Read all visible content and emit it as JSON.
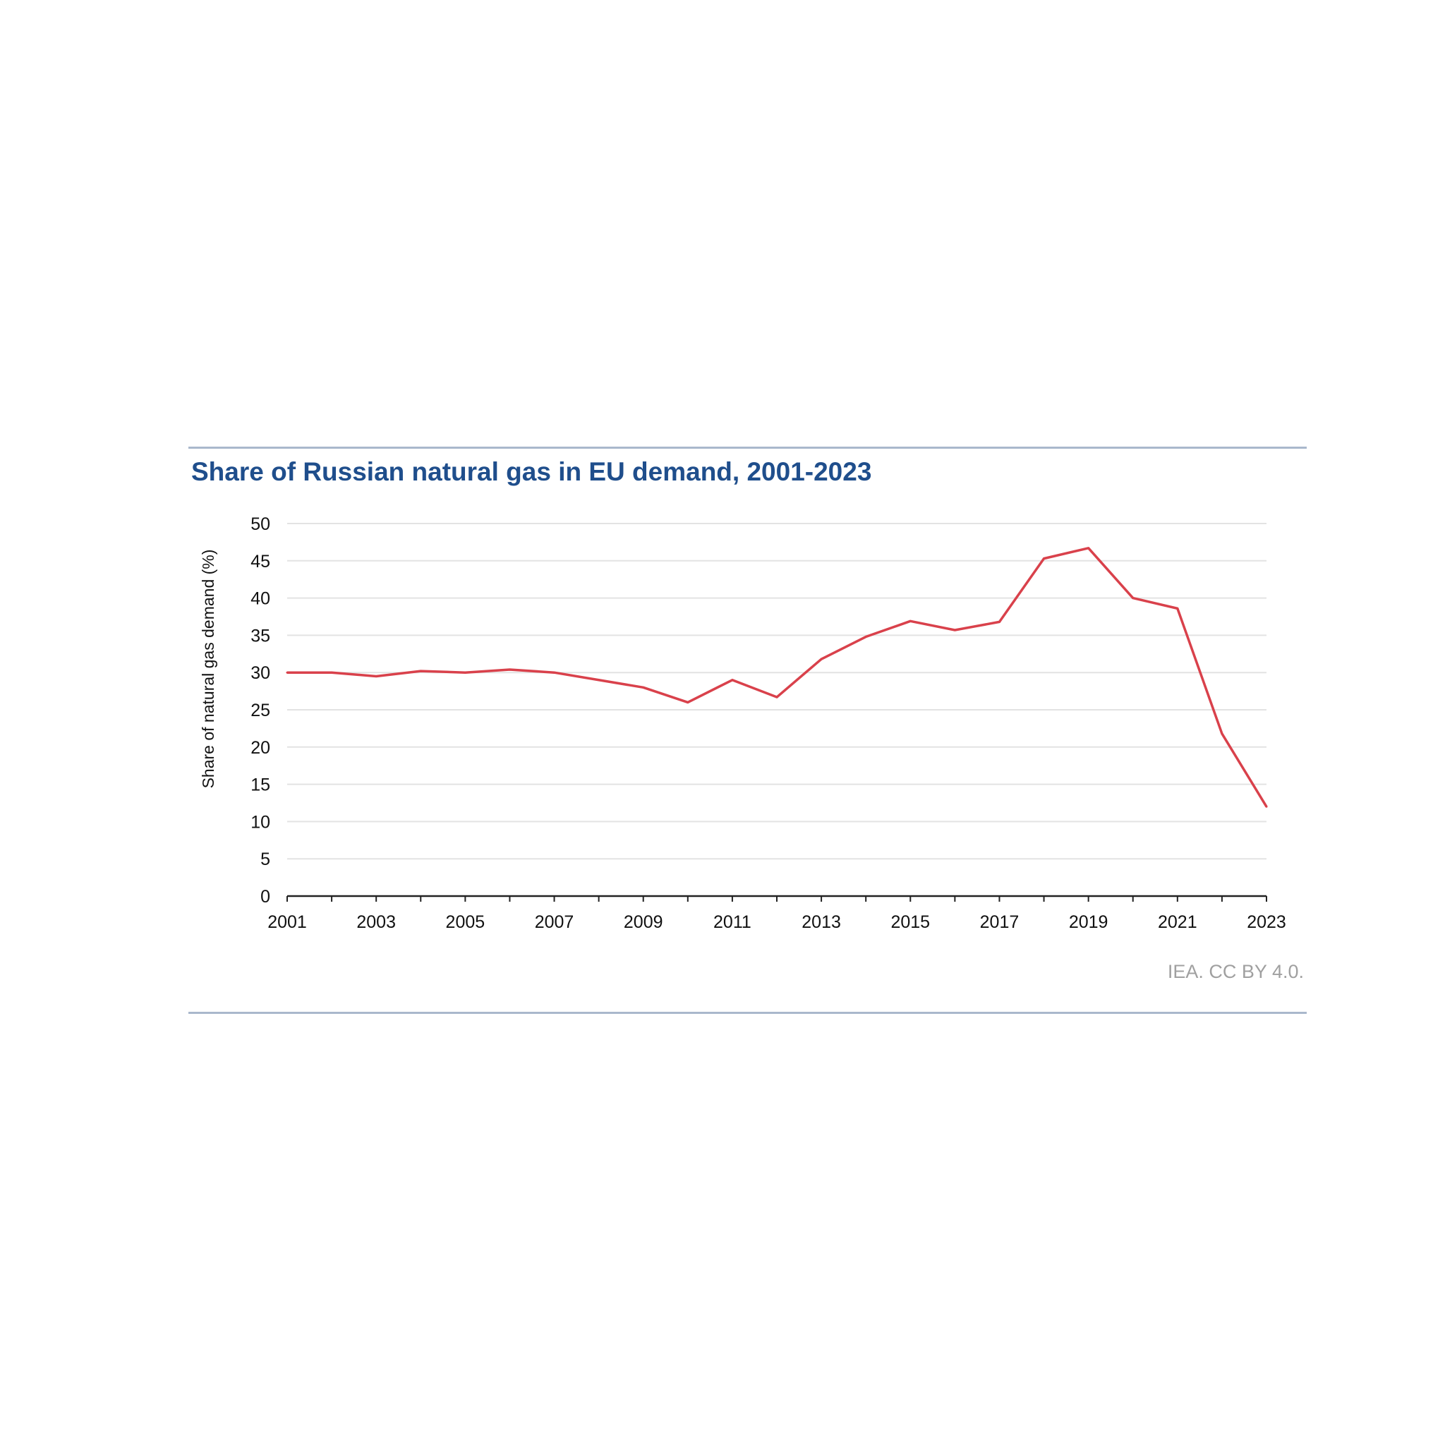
{
  "chart_data": {
    "type": "line",
    "title": "Share of Russian natural gas in EU demand, 2001-2023",
    "xlabel": "",
    "ylabel": "Share of natural gas demand (%)",
    "x": [
      2001,
      2002,
      2003,
      2004,
      2005,
      2006,
      2007,
      2008,
      2009,
      2010,
      2011,
      2012,
      2013,
      2014,
      2015,
      2016,
      2017,
      2018,
      2019,
      2020,
      2021,
      2022,
      2023
    ],
    "series": [
      {
        "name": "Share of Russian natural gas",
        "color": "#d9414b",
        "values": [
          30,
          30,
          29.5,
          30.2,
          30,
          30.4,
          30,
          29,
          28,
          26,
          29,
          26.7,
          31.8,
          34.8,
          36.9,
          35.7,
          36.8,
          45.3,
          46.7,
          40,
          38.6,
          21.8,
          12
        ]
      }
    ],
    "xticks": [
      "2001",
      "2003",
      "2005",
      "2007",
      "2009",
      "2011",
      "2013",
      "2015",
      "2017",
      "2019",
      "2021",
      "2023"
    ],
    "yticks": [
      "0",
      "5",
      "10",
      "15",
      "20",
      "25",
      "30",
      "35",
      "40",
      "45",
      "50"
    ],
    "ylim": [
      0,
      50
    ],
    "xlim": [
      2001,
      2023
    ],
    "grid": true,
    "legend": "none",
    "source": "IEA. CC BY 4.0."
  }
}
